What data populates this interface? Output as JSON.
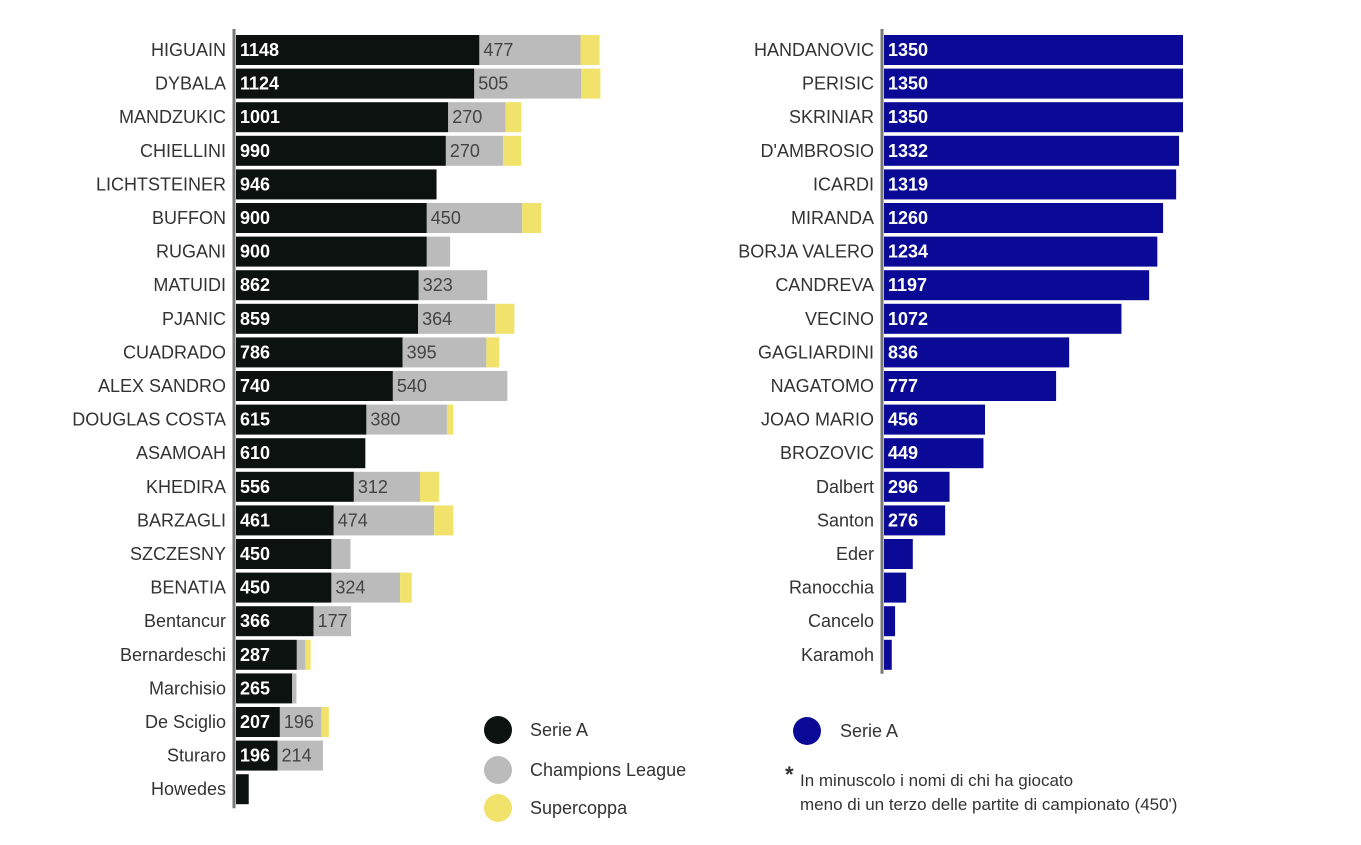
{
  "colors": {
    "serie_a_juve": "#0b120f",
    "champions_league": "#bbbbbb",
    "supercoppa": "#f0e26a",
    "serie_a_inter": "#0a0a96",
    "axis": "#777777"
  },
  "chart_data": [
    {
      "type": "bar",
      "orientation": "horizontal",
      "stacked": true,
      "categories": [
        "HIGUAIN",
        "DYBALA",
        "MANDZUKIC",
        "CHIELLINI",
        "LICHTSTEINER",
        "BUFFON",
        "RUGANI",
        "MATUIDI",
        "PJANIC",
        "CUADRADO",
        "ALEX SANDRO",
        "DOUGLAS COSTA",
        "ASAMOAH",
        "KHEDIRA",
        "BARZAGLI",
        "SZCZESNY",
        "BENATIA",
        "Bentancur",
        "Bernardeschi",
        "Marchisio",
        "De Sciglio",
        "Sturaro",
        "Howedes"
      ],
      "series": [
        {
          "name": "Serie A",
          "values": [
            1148,
            1124,
            1001,
            990,
            946,
            900,
            900,
            862,
            859,
            786,
            740,
            615,
            610,
            556,
            461,
            450,
            450,
            366,
            287,
            265,
            207,
            196,
            60
          ],
          "labels": [
            "1148",
            "1124",
            "1001",
            "990",
            "946",
            "900",
            "900",
            "862",
            "859",
            "786",
            "740",
            "615",
            "610",
            "556",
            "461",
            "450",
            "450",
            "366",
            "287",
            "265",
            "207",
            "196",
            ""
          ]
        },
        {
          "name": "Champions League",
          "values": [
            477,
            505,
            270,
            270,
            0,
            450,
            110,
            323,
            364,
            395,
            540,
            380,
            0,
            312,
            474,
            90,
            324,
            177,
            40,
            20,
            196,
            214,
            0
          ],
          "labels": [
            "477",
            "505",
            "270",
            "270",
            "",
            "450",
            "",
            "323",
            "364",
            "395",
            "540",
            "380",
            "",
            "312",
            "474",
            "",
            "324",
            "177",
            "",
            "",
            "196",
            "214",
            ""
          ]
        },
        {
          "name": "Supercoppa",
          "values": [
            90,
            90,
            75,
            85,
            0,
            90,
            0,
            0,
            90,
            60,
            0,
            30,
            0,
            90,
            90,
            0,
            55,
            0,
            25,
            0,
            35,
            0,
            0
          ]
        }
      ]
    },
    {
      "type": "bar",
      "orientation": "horizontal",
      "categories": [
        "HANDANOVIC",
        "PERISIC",
        "SKRINIAR",
        "D'AMBROSIO",
        "ICARDI",
        "MIRANDA",
        "BORJA VALERO",
        "CANDREVA",
        "VECINO",
        "GAGLIARDINI",
        "NAGATOMO",
        "JOAO MARIO",
        "BROZOVIC",
        "Dalbert",
        "Santon",
        "Eder",
        "Ranocchia",
        "Cancelo",
        "Karamoh"
      ],
      "series": [
        {
          "name": "Serie A",
          "values": [
            1350,
            1350,
            1350,
            1332,
            1319,
            1260,
            1234,
            1197,
            1072,
            836,
            777,
            456,
            449,
            296,
            276,
            130,
            100,
            50,
            35
          ],
          "labels": [
            "1350",
            "1350",
            "1350",
            "1332",
            "1319",
            "1260",
            "1234",
            "1197",
            "1072",
            "836",
            "777",
            "456",
            "449",
            "296",
            "276",
            "",
            "",
            "",
            ""
          ]
        }
      ]
    }
  ],
  "legend_left": [
    "Serie A",
    "Champions League",
    "Supercoppa"
  ],
  "legend_right": [
    "Serie A"
  ],
  "note": {
    "star": "*",
    "line1": "In minuscolo i nomi di chi ha giocato",
    "line2": "meno di un terzo delle partite di campionato (450')"
  }
}
